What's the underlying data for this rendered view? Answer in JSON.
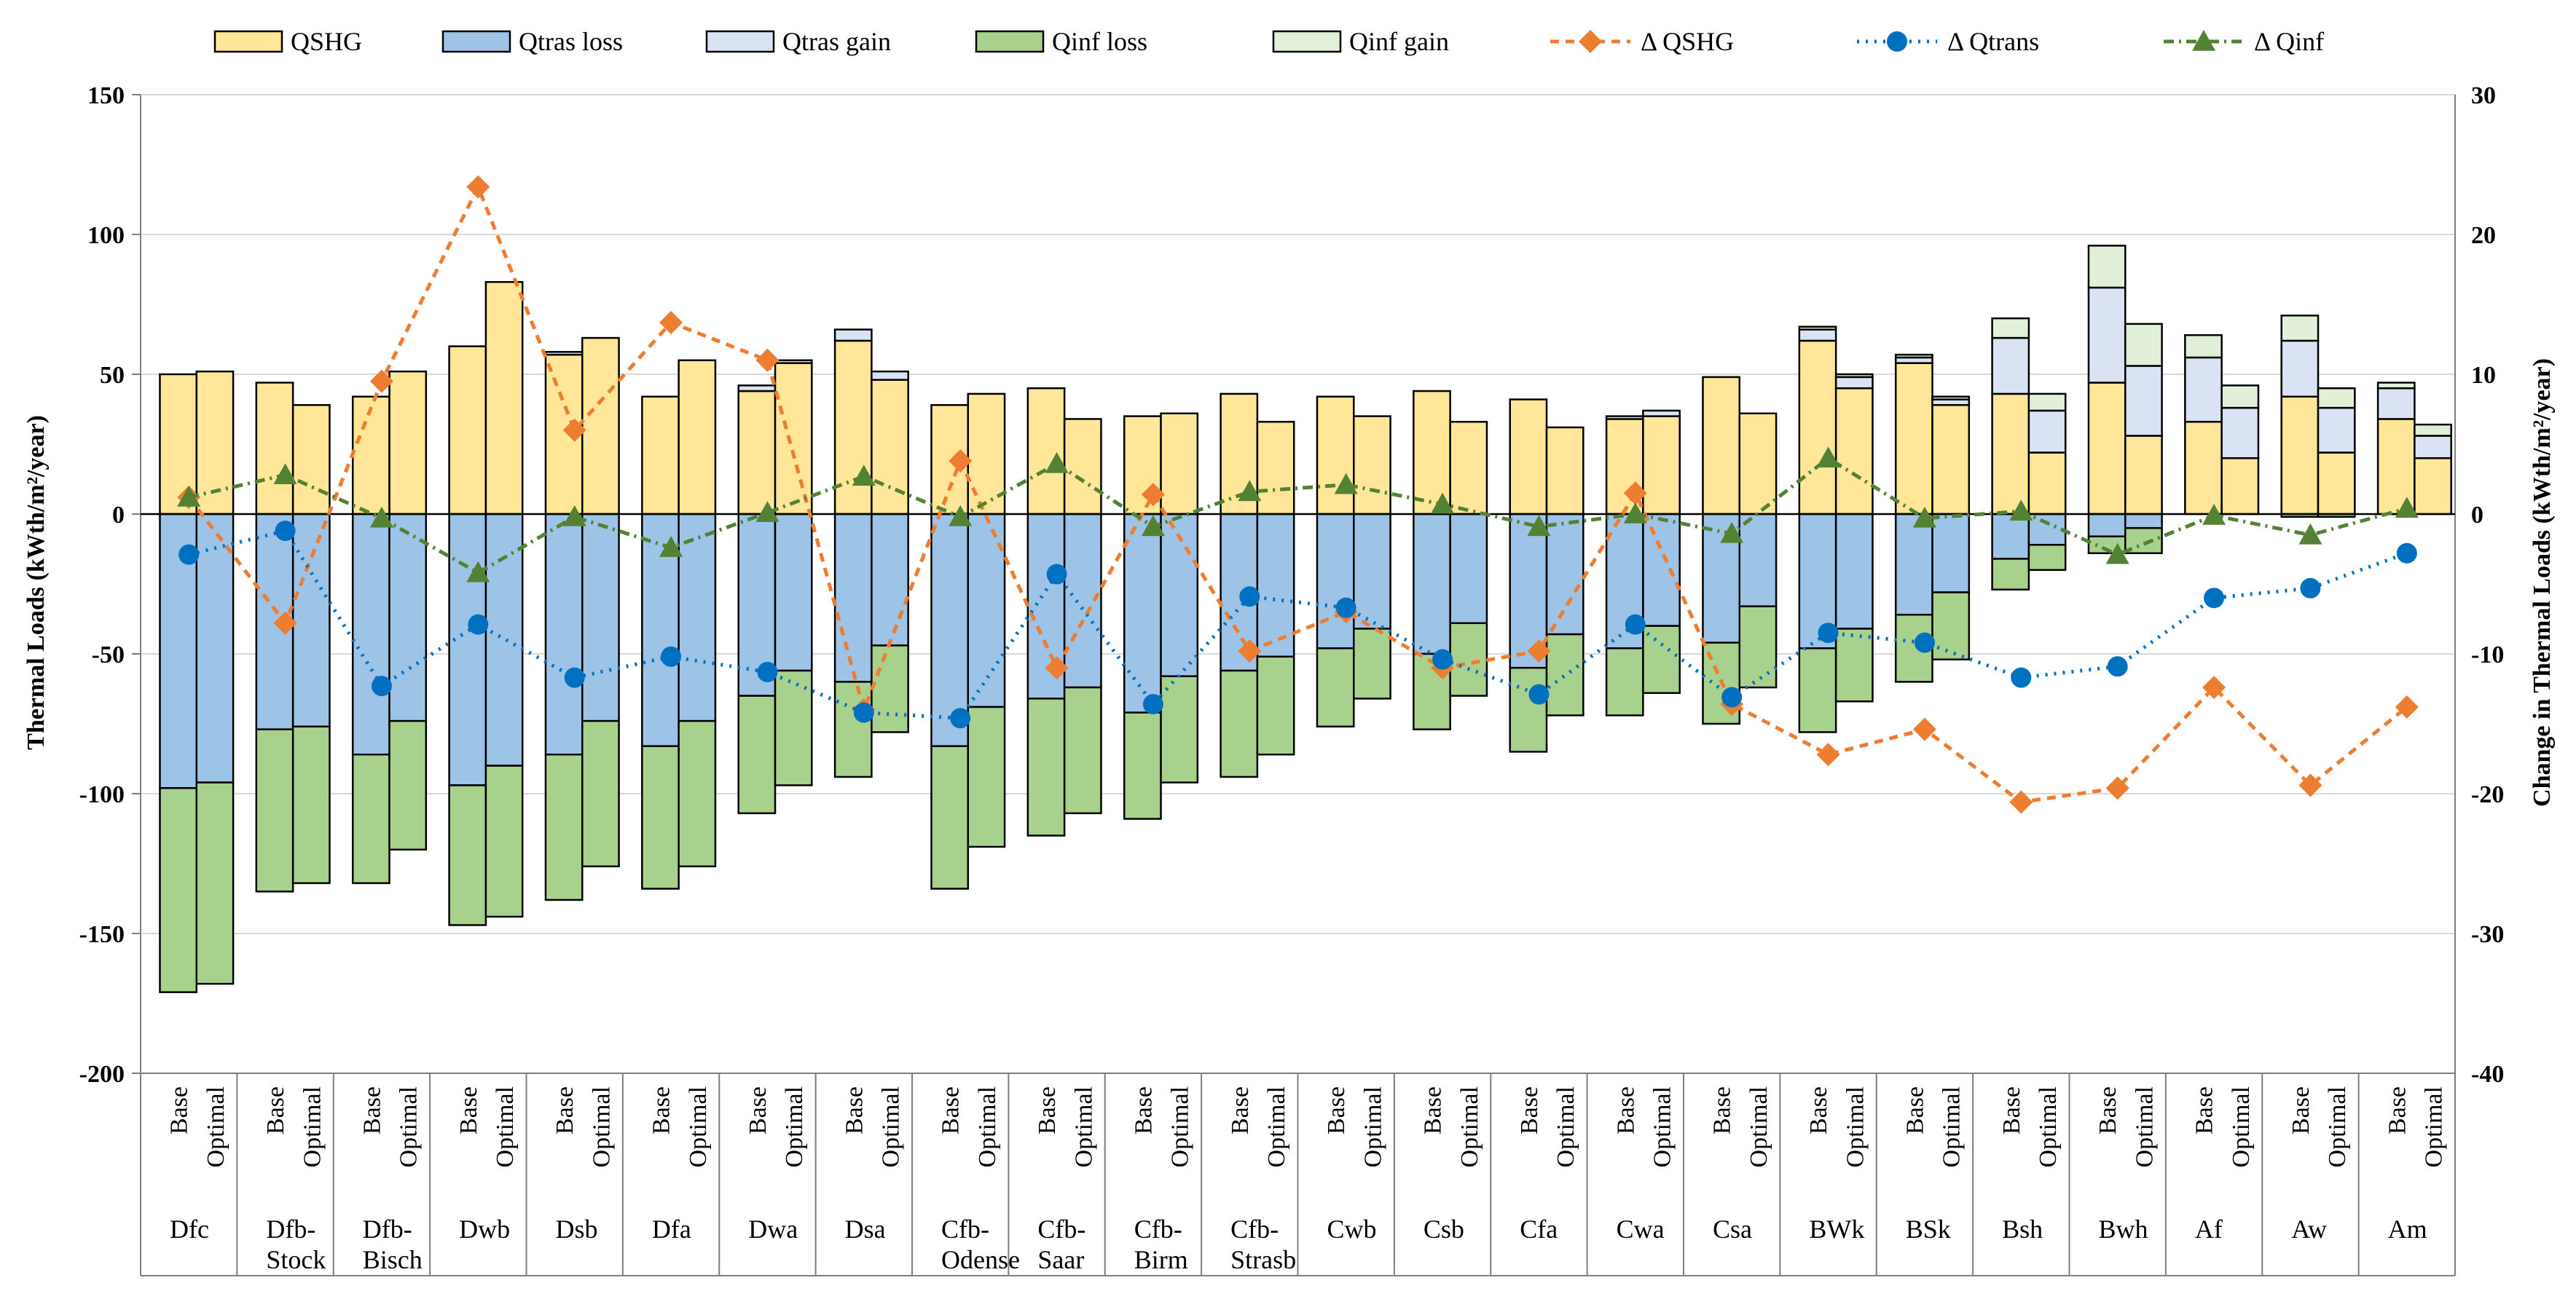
{
  "chart_data": {
    "type": "bar",
    "subtype": "stacked bar with secondary-axis lines",
    "title": "",
    "ylabel": "Thermal Loads (kWth/m²/year)",
    "y2label": "Change in Thermal Loads (kWth/m²/year)",
    "ylim": [
      -200,
      150
    ],
    "y2lim": [
      -40,
      30
    ],
    "yticks": [
      "150",
      "100",
      "50",
      "0",
      "-50",
      "-100",
      "-150",
      "-200"
    ],
    "y2ticks": [
      "30",
      "20",
      "10",
      "0",
      "-10",
      "-20",
      "-30",
      "-40"
    ],
    "sub_labels": [
      "Base",
      "Optimal"
    ],
    "categories": [
      "Dfc",
      "Dfb-Stock",
      "Dfb-Bisch",
      "Dwb",
      "Dsb",
      "Dfa",
      "Dwa",
      "Dsa",
      "Cfb-Odense",
      "Cfb-Saar",
      "Cfb-Birm",
      "Cfb-Strasb",
      "Cwb",
      "Csb",
      "Cfa",
      "Cwa",
      "Csa",
      "BWk",
      "BSk",
      "Bsh",
      "Bwh",
      "Af",
      "Aw",
      "Am"
    ],
    "category_lines": [
      [
        "Dfc"
      ],
      [
        "Dfb-",
        "Stock"
      ],
      [
        "Dfb-",
        "Bisch"
      ],
      [
        "Dwb"
      ],
      [
        "Dsb"
      ],
      [
        "Dfa"
      ],
      [
        "Dwa"
      ],
      [
        "Dsa"
      ],
      [
        "Cfb-",
        "Odense"
      ],
      [
        "Cfb-",
        "Saar"
      ],
      [
        "Cfb-",
        "Birm"
      ],
      [
        "Cfb-",
        "Strasb"
      ],
      [
        "Cwb"
      ],
      [
        "Csb"
      ],
      [
        "Cfa"
      ],
      [
        "Cwa"
      ],
      [
        "Csa"
      ],
      [
        "BWk"
      ],
      [
        "BSk"
      ],
      [
        "Bsh"
      ],
      [
        "Bwh"
      ],
      [
        "Af"
      ],
      [
        "Aw"
      ],
      [
        "Am"
      ]
    ],
    "bar_series": [
      {
        "name": "QSHG",
        "key": "qshg",
        "color": "#FFE699",
        "stack": "positive",
        "base": [
          50,
          47,
          42,
          60,
          57,
          42,
          44,
          62,
          39,
          45,
          35,
          43,
          42,
          44,
          41,
          34,
          49,
          62,
          54,
          43,
          47,
          33,
          42,
          34
        ],
        "optimal": [
          51,
          39,
          51,
          83,
          63,
          55,
          54,
          48,
          43,
          34,
          36,
          33,
          35,
          33,
          31,
          35,
          36,
          45,
          39,
          22,
          28,
          20,
          22,
          20
        ]
      },
      {
        "name": "Qtras loss",
        "key": "qtras_loss",
        "color": "#9DC3E6",
        "stack": "negative",
        "base": [
          -98,
          -77,
          -86,
          -97,
          -86,
          -83,
          -65,
          -60,
          -83,
          -66,
          -71,
          -56,
          -48,
          -50,
          -55,
          -48,
          -46,
          -48,
          -36,
          -16,
          -8,
          0,
          0,
          0
        ],
        "optimal": [
          -96,
          -76,
          -74,
          -90,
          -74,
          -74,
          -56,
          -47,
          -69,
          -62,
          -58,
          -51,
          -41,
          -39,
          -43,
          -40,
          -33,
          -41,
          -28,
          -11,
          -5,
          0,
          0,
          0
        ]
      },
      {
        "name": "Qtras gain",
        "key": "qtras_gain",
        "color": "#DAE3F3",
        "stack": "positive",
        "base": [
          0,
          0,
          0,
          0,
          1,
          0,
          2,
          4,
          0,
          0,
          0,
          0,
          0,
          0,
          0,
          1,
          0,
          4,
          2,
          20,
          34,
          23,
          20,
          11
        ],
        "optimal": [
          0,
          0,
          0,
          0,
          0,
          0,
          1,
          3,
          0,
          0,
          0,
          0,
          0,
          0,
          0,
          2,
          0,
          4,
          2,
          15,
          25,
          18,
          16,
          8
        ]
      },
      {
        "name": "Qinf loss",
        "key": "qinf_loss",
        "color": "#A9D18E",
        "stack": "negative",
        "base": [
          -73,
          -58,
          -46,
          -50,
          -52,
          -51,
          -42,
          -34,
          -51,
          -49,
          -38,
          -38,
          -28,
          -27,
          -30,
          -24,
          -29,
          -30,
          -24,
          -11,
          -6,
          0,
          -1,
          0
        ],
        "optimal": [
          -72,
          -56,
          -46,
          -54,
          -52,
          -52,
          -41,
          -31,
          -50,
          -45,
          -38,
          -35,
          -25,
          -26,
          -29,
          -24,
          -29,
          -26,
          -24,
          -9,
          -9,
          0,
          -1,
          0
        ]
      },
      {
        "name": "Qinf gain",
        "key": "qinf_gain",
        "color": "#E2F0D9",
        "stack": "positive",
        "base": [
          0,
          0,
          0,
          0,
          0,
          0,
          0,
          0,
          0,
          0,
          0,
          0,
          0,
          0,
          0,
          0,
          0,
          1,
          1,
          7,
          15,
          8,
          9,
          2
        ],
        "optimal": [
          0,
          0,
          0,
          0,
          0,
          0,
          0,
          0,
          0,
          0,
          0,
          0,
          0,
          0,
          0,
          0,
          0,
          1,
          1,
          6,
          15,
          8,
          7,
          4
        ]
      }
    ],
    "line_series": [
      {
        "name": "Δ QSHG",
        "key": "d_qshg",
        "color": "#ED7D31",
        "marker": "diamond",
        "dash": "12,9",
        "values": [
          1.2,
          -7.8,
          9.5,
          23.4,
          6.0,
          13.7,
          11.0,
          -14.0,
          3.8,
          -11.0,
          1.4,
          -9.8,
          -7.0,
          -11.0,
          -9.8,
          1.5,
          -13.6,
          -17.2,
          -15.4,
          -20.6,
          -19.6,
          -12.4,
          -19.4,
          -13.8
        ]
      },
      {
        "name": "Δ Qtrans",
        "key": "d_qtrans",
        "color": "#0070C0",
        "marker": "circle",
        "dash": "3,9",
        "values": [
          -2.9,
          -1.2,
          -12.3,
          -7.9,
          -11.7,
          -10.2,
          -11.3,
          -14.2,
          -14.6,
          -4.3,
          -13.6,
          -5.9,
          -6.7,
          -10.4,
          -12.9,
          -7.9,
          -13.1,
          -8.5,
          -9.2,
          -11.7,
          -10.9,
          -6.0,
          -5.3,
          -2.8
        ]
      },
      {
        "name": "Δ Qinf",
        "key": "d_qinf",
        "color": "#548235",
        "marker": "triangle",
        "dash": "14,7,3,7",
        "values": [
          1.2,
          2.8,
          -0.3,
          -4.2,
          -0.2,
          -2.4,
          0.1,
          2.7,
          -0.2,
          3.6,
          -0.9,
          1.6,
          2.1,
          0.7,
          -0.9,
          0.0,
          -1.4,
          4.0,
          -0.3,
          0.2,
          -2.9,
          -0.1,
          -1.5,
          0.4
        ]
      }
    ],
    "legend": {
      "position": "top",
      "entries": [
        {
          "label": "QSHG",
          "kind": "box",
          "color": "#FFE699"
        },
        {
          "label": "Qtras loss",
          "kind": "box",
          "color": "#9DC3E6"
        },
        {
          "label": "Qtras gain",
          "kind": "box",
          "color": "#DAE3F3"
        },
        {
          "label": "Qinf loss",
          "kind": "box",
          "color": "#A9D18E"
        },
        {
          "label": "Qinf gain",
          "kind": "box",
          "color": "#E2F0D9"
        },
        {
          "label": "Δ QSHG",
          "kind": "line",
          "color": "#ED7D31",
          "marker": "diamond",
          "dash": "12,9"
        },
        {
          "label": "Δ Qtrans",
          "kind": "line",
          "color": "#0070C0",
          "marker": "circle",
          "dash": "3,9"
        },
        {
          "label": "Δ Qinf",
          "kind": "line",
          "color": "#548235",
          "marker": "triangle",
          "dash": "14,7,3,7"
        }
      ]
    },
    "grid": true
  }
}
